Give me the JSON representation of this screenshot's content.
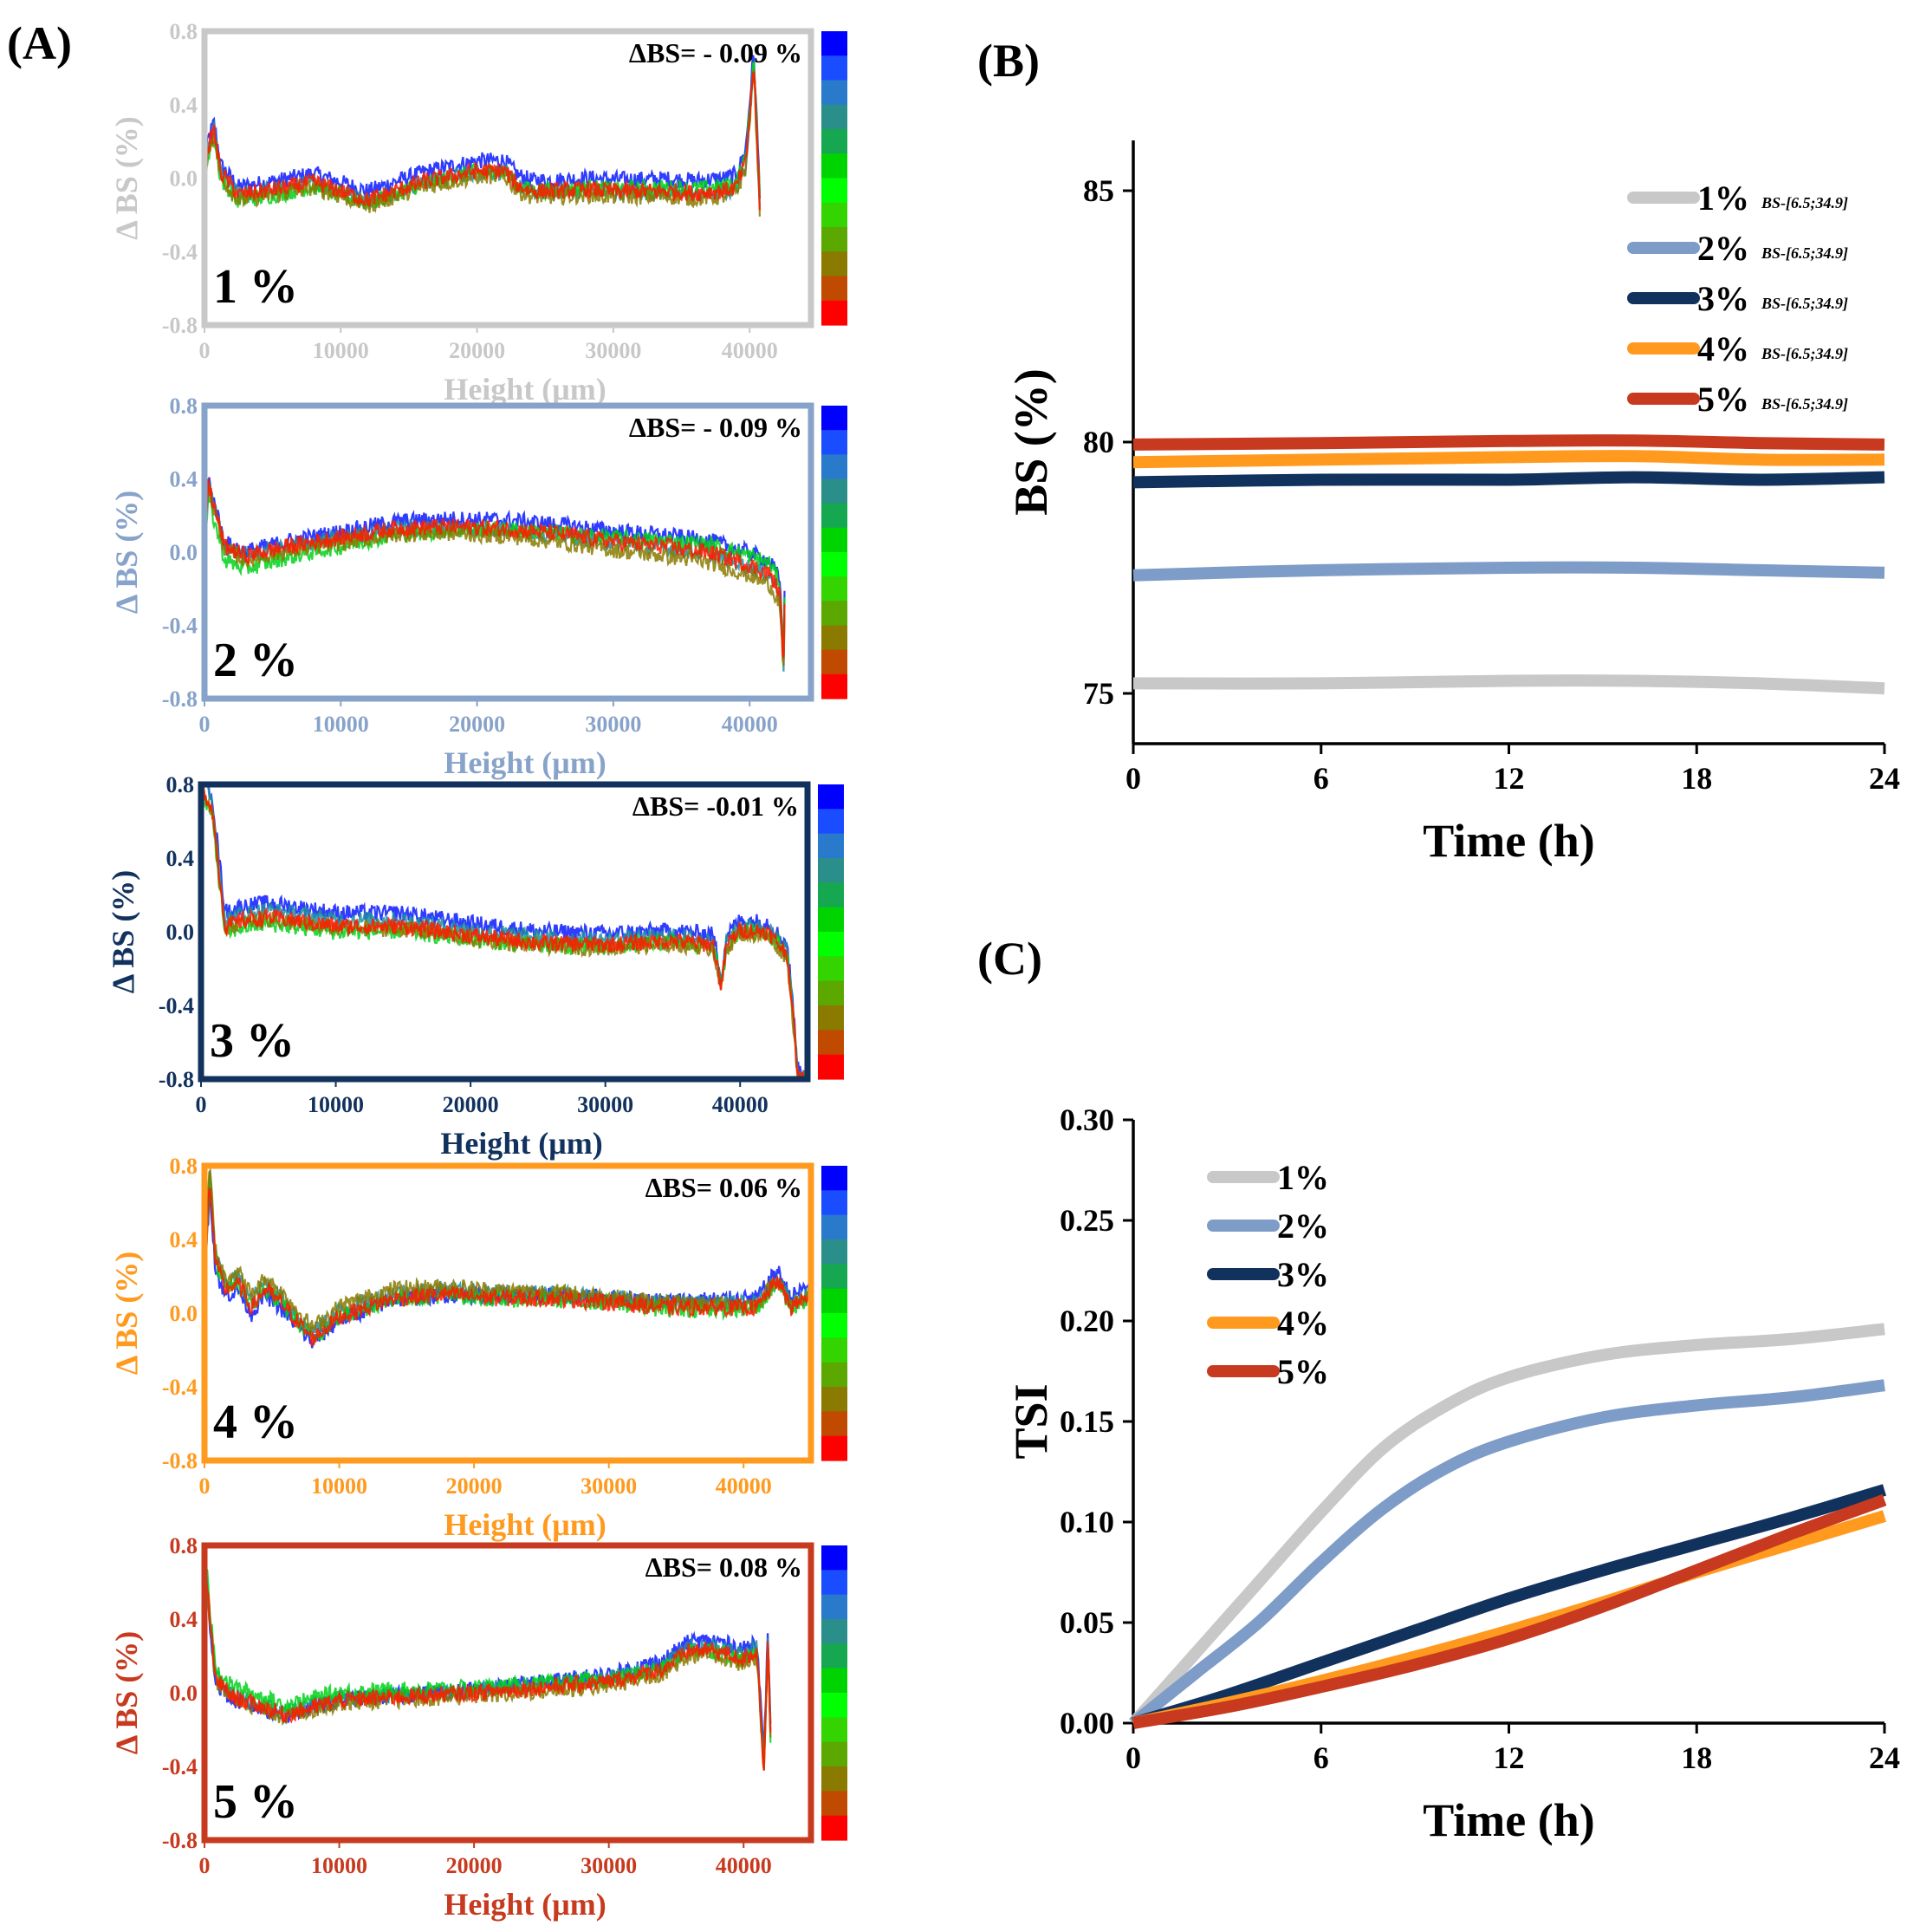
{
  "panel_labels": {
    "a": "(A)",
    "b": "(B)",
    "c": "(C)"
  },
  "colorbar": [
    "#0000ff",
    "#1a4dff",
    "#2a7acc",
    "#2a8f8a",
    "#16a850",
    "#00d400",
    "#00ff00",
    "#33d400",
    "#5aa800",
    "#8a7a00",
    "#c04a00",
    "#ff0000"
  ],
  "chart_data": [
    {
      "type": "line",
      "title": "",
      "id": "a1",
      "concentration": "1 %",
      "delta_label": "ΔBS= - 0.09 %",
      "color": "#c8c8c8",
      "xlabel": "Height (μm)",
      "ylabel": "Δ BS (%)",
      "xlim": [
        0,
        44500
      ],
      "ylim": [
        -0.8,
        0.8
      ],
      "xticks": [
        0,
        10000,
        20000,
        30000,
        40000
      ],
      "yticks": [
        0.8,
        0.4,
        0.0,
        -0.4,
        -0.8
      ],
      "xtick_labels": [
        "0",
        "10000",
        "20000",
        "30000",
        "40000"
      ],
      "ytick_labels": [
        "0.8",
        "0.4",
        "0.0",
        "-0.4",
        "-0.8"
      ],
      "x_end": 40800,
      "profile": [
        [
          0,
          0.05
        ],
        [
          300,
          0.2
        ],
        [
          700,
          0.28
        ],
        [
          1200,
          0.05
        ],
        [
          2500,
          -0.07
        ],
        [
          6000,
          -0.03
        ],
        [
          8000,
          0.0
        ],
        [
          10000,
          -0.05
        ],
        [
          12000,
          -0.1
        ],
        [
          14000,
          -0.05
        ],
        [
          16000,
          0.0
        ],
        [
          18000,
          0.03
        ],
        [
          20000,
          0.06
        ],
        [
          22000,
          0.06
        ],
        [
          23000,
          -0.02
        ],
        [
          24000,
          -0.05
        ],
        [
          26000,
          -0.05
        ],
        [
          28000,
          -0.04
        ],
        [
          30000,
          -0.05
        ],
        [
          32000,
          -0.05
        ],
        [
          34000,
          -0.05
        ],
        [
          36000,
          -0.06
        ],
        [
          38000,
          -0.05
        ],
        [
          39000,
          -0.03
        ],
        [
          39700,
          0.1
        ],
        [
          40100,
          0.45
        ],
        [
          40300,
          0.65
        ],
        [
          40500,
          0.3
        ],
        [
          40700,
          -0.05
        ],
        [
          40800,
          -0.22
        ]
      ],
      "spreads": [
        [
          0.02,
          0.05
        ],
        [
          -0.02,
          -0.03
        ],
        [
          -0.06,
          0.01
        ],
        [
          -0.05,
          -0.05
        ]
      ]
    },
    {
      "type": "line",
      "title": "",
      "id": "a2",
      "concentration": "2 %",
      "delta_label": "ΔBS= - 0.09 %",
      "color": "#88a3c9",
      "xlabel": "Height (μm)",
      "ylabel": "Δ BS (%)",
      "xlim": [
        0,
        44500
      ],
      "ylim": [
        -0.8,
        0.8
      ],
      "xticks": [
        0,
        10000,
        20000,
        30000,
        40000
      ],
      "yticks": [
        0.8,
        0.4,
        0.0,
        -0.4,
        -0.8
      ],
      "xtick_labels": [
        "0",
        "10000",
        "20000",
        "30000",
        "40000"
      ],
      "ytick_labels": [
        "0.8",
        "0.4",
        "0.0",
        "-0.4",
        "-0.8"
      ],
      "x_end": 42600,
      "profile": [
        [
          0,
          0.1
        ],
        [
          300,
          0.4
        ],
        [
          600,
          0.3
        ],
        [
          1500,
          0.05
        ],
        [
          3000,
          0.0
        ],
        [
          6000,
          0.05
        ],
        [
          10000,
          0.1
        ],
        [
          14000,
          0.15
        ],
        [
          18000,
          0.16
        ],
        [
          22000,
          0.15
        ],
        [
          26000,
          0.12
        ],
        [
          30000,
          0.08
        ],
        [
          34000,
          0.05
        ],
        [
          37000,
          0.02
        ],
        [
          40000,
          -0.05
        ],
        [
          41500,
          -0.1
        ],
        [
          42200,
          -0.2
        ],
        [
          42500,
          -0.6
        ],
        [
          42600,
          -0.1
        ]
      ],
      "spreads": [
        [
          0.0,
          0.05
        ],
        [
          -0.02,
          -0.03
        ],
        [
          -0.1,
          0.04
        ],
        [
          -0.04,
          -0.08
        ]
      ]
    },
    {
      "type": "line",
      "title": "",
      "id": "a3",
      "concentration": "3 %",
      "delta_label": "ΔBS= -0.01 %",
      "color": "#12325e",
      "xlabel": "Height (μm)",
      "ylabel": "Δ BS (%)",
      "xlim": [
        0,
        45000
      ],
      "ylim": [
        -0.8,
        0.8
      ],
      "xticks": [
        0,
        10000,
        20000,
        30000,
        40000
      ],
      "yticks": [
        0.8,
        0.4,
        0.0,
        -0.4,
        -0.8
      ],
      "xtick_labels": [
        "0",
        "10000",
        "20000",
        "30000",
        "40000"
      ],
      "ytick_labels": [
        "0.8",
        "0.4",
        "0.0",
        "-0.4",
        "-0.8"
      ],
      "x_end": 44800,
      "profile": [
        [
          0,
          0.8
        ],
        [
          400,
          0.75
        ],
        [
          800,
          0.7
        ],
        [
          1400,
          0.3
        ],
        [
          1800,
          0.05
        ],
        [
          3000,
          0.08
        ],
        [
          5000,
          0.1
        ],
        [
          10000,
          0.05
        ],
        [
          15000,
          0.05
        ],
        [
          20000,
          0.0
        ],
        [
          25000,
          -0.04
        ],
        [
          30000,
          -0.05
        ],
        [
          35000,
          -0.03
        ],
        [
          38000,
          -0.05
        ],
        [
          38600,
          -0.28
        ],
        [
          39000,
          -0.05
        ],
        [
          40000,
          0.03
        ],
        [
          42000,
          0.02
        ],
        [
          43500,
          -0.1
        ],
        [
          44000,
          -0.5
        ],
        [
          44300,
          -0.78
        ]
      ],
      "spreads": [
        [
          0.06,
          0.03
        ],
        [
          0.02,
          0.0
        ],
        [
          -0.06,
          -0.02
        ],
        [
          -0.03,
          -0.04
        ]
      ]
    },
    {
      "type": "line",
      "title": "",
      "id": "a4",
      "concentration": "4 %",
      "delta_label": "ΔBS= 0.06 %",
      "color": "#ff9a1f",
      "xlabel": "Height (μm)",
      "ylabel": "Δ BS (%)",
      "xlim": [
        0,
        45000
      ],
      "ylim": [
        -0.8,
        0.8
      ],
      "xticks": [
        0,
        10000,
        20000,
        30000,
        40000
      ],
      "yticks": [
        0.8,
        0.4,
        0.0,
        -0.4,
        -0.8
      ],
      "xtick_labels": [
        "0",
        "10000",
        "20000",
        "30000",
        "40000"
      ],
      "ytick_labels": [
        "0.8",
        "0.4",
        "0.0",
        "-0.4",
        "-0.8"
      ],
      "x_end": 45000,
      "profile": [
        [
          0,
          0.2
        ],
        [
          400,
          0.75
        ],
        [
          800,
          0.3
        ],
        [
          1500,
          0.15
        ],
        [
          2500,
          0.18
        ],
        [
          3500,
          0.05
        ],
        [
          4500,
          0.15
        ],
        [
          6000,
          0.05
        ],
        [
          8000,
          -0.12
        ],
        [
          10000,
          0.0
        ],
        [
          14000,
          0.1
        ],
        [
          18000,
          0.12
        ],
        [
          22000,
          0.1
        ],
        [
          26000,
          0.1
        ],
        [
          30000,
          0.08
        ],
        [
          34000,
          0.05
        ],
        [
          38000,
          0.05
        ],
        [
          41000,
          0.05
        ],
        [
          42500,
          0.2
        ],
        [
          43500,
          0.05
        ],
        [
          45000,
          0.12
        ]
      ],
      "spreads": [
        [
          -0.06,
          0.04
        ],
        [
          0.02,
          0.0
        ],
        [
          -0.02,
          -0.03
        ],
        [
          0.05,
          -0.01
        ]
      ]
    },
    {
      "type": "line",
      "title": "",
      "id": "a5",
      "concentration": "5 %",
      "delta_label": "ΔBS= 0.08 %",
      "color": "#c73a1f",
      "xlabel": "Height (μm)",
      "ylabel": "Δ BS (%)",
      "xlim": [
        0,
        45000
      ],
      "ylim": [
        -0.8,
        0.8
      ],
      "xticks": [
        0,
        10000,
        20000,
        30000,
        40000
      ],
      "yticks": [
        0.8,
        0.4,
        0.0,
        -0.4,
        -0.8
      ],
      "xtick_labels": [
        "0",
        "10000",
        "20000",
        "30000",
        "40000"
      ],
      "ytick_labels": [
        "0.8",
        "0.4",
        "0.0",
        "-0.4",
        "-0.8"
      ],
      "x_end": 42000,
      "profile": [
        [
          0,
          0.8
        ],
        [
          300,
          0.5
        ],
        [
          800,
          0.1
        ],
        [
          2000,
          0.0
        ],
        [
          6000,
          -0.1
        ],
        [
          10000,
          -0.02
        ],
        [
          15000,
          0.0
        ],
        [
          20000,
          0.02
        ],
        [
          25000,
          0.05
        ],
        [
          30000,
          0.08
        ],
        [
          34000,
          0.15
        ],
        [
          36000,
          0.25
        ],
        [
          38000,
          0.25
        ],
        [
          40000,
          0.2
        ],
        [
          41000,
          0.25
        ],
        [
          41500,
          -0.4
        ],
        [
          41800,
          0.3
        ],
        [
          42000,
          -0.2
        ]
      ],
      "spreads": [
        [
          -0.04,
          0.04
        ],
        [
          -0.01,
          0.0
        ],
        [
          0.04,
          -0.03
        ],
        [
          -0.03,
          -0.05
        ]
      ]
    },
    {
      "type": "line",
      "id": "b",
      "title": "",
      "xlabel": "Time (h)",
      "ylabel": "BS (%)",
      "xlim": [
        0,
        24
      ],
      "ylim": [
        74,
        86
      ],
      "xticks": [
        0,
        6,
        12,
        18,
        24
      ],
      "yticks": [
        75,
        80,
        85
      ],
      "xtick_labels": [
        "0",
        "6",
        "12",
        "18",
        "24"
      ],
      "ytick_labels": [
        "75",
        "80",
        "85"
      ],
      "legend_suffix": "BS-[6.5;34.9]",
      "series": [
        {
          "name": "1%",
          "color": "#c8c8c8",
          "x": [
            0,
            6,
            12,
            16,
            20,
            24
          ],
          "values": [
            75.2,
            75.2,
            75.25,
            75.25,
            75.2,
            75.1
          ]
        },
        {
          "name": "2%",
          "color": "#7e9cc8",
          "x": [
            0,
            6,
            12,
            16,
            20,
            24
          ],
          "values": [
            77.35,
            77.45,
            77.5,
            77.5,
            77.45,
            77.4
          ]
        },
        {
          "name": "3%",
          "color": "#12325e",
          "x": [
            0,
            6,
            12,
            16,
            20,
            24
          ],
          "values": [
            79.2,
            79.25,
            79.25,
            79.3,
            79.25,
            79.3
          ]
        },
        {
          "name": "4%",
          "color": "#ff9a1f",
          "x": [
            0,
            6,
            12,
            16,
            20,
            24
          ],
          "values": [
            79.6,
            79.65,
            79.7,
            79.72,
            79.65,
            79.65
          ]
        },
        {
          "name": "5%",
          "color": "#c73a1f",
          "x": [
            0,
            6,
            12,
            16,
            20,
            24
          ],
          "values": [
            79.95,
            79.98,
            80.02,
            80.03,
            79.98,
            79.95
          ]
        }
      ]
    },
    {
      "type": "line",
      "id": "c",
      "title": "",
      "xlabel": "Time (h)",
      "ylabel": "TSI",
      "xlim": [
        0,
        24
      ],
      "ylim": [
        0,
        0.3
      ],
      "xticks": [
        0,
        6,
        12,
        18,
        24
      ],
      "yticks": [
        0.0,
        0.05,
        0.1,
        0.15,
        0.2,
        0.25,
        0.3
      ],
      "xtick_labels": [
        "0",
        "6",
        "12",
        "18",
        "24"
      ],
      "ytick_labels": [
        "0.00",
        "0.05",
        "0.10",
        "0.15",
        "0.20",
        "0.25",
        "0.30"
      ],
      "series": [
        {
          "name": "1%",
          "color": "#c8c8c8",
          "x": [
            0,
            2,
            4,
            6,
            8,
            10,
            12,
            15,
            18,
            21,
            24
          ],
          "values": [
            0.0,
            0.035,
            0.07,
            0.105,
            0.137,
            0.158,
            0.172,
            0.183,
            0.188,
            0.191,
            0.196
          ]
        },
        {
          "name": "2%",
          "color": "#7e9cc8",
          "x": [
            0,
            2,
            4,
            6,
            8,
            10,
            12,
            15,
            18,
            21,
            24
          ],
          "values": [
            0.0,
            0.025,
            0.05,
            0.08,
            0.107,
            0.127,
            0.14,
            0.152,
            0.158,
            0.162,
            0.168
          ]
        },
        {
          "name": "3%",
          "color": "#12325e",
          "x": [
            0,
            3,
            6,
            9,
            12,
            15,
            18,
            21,
            24
          ],
          "values": [
            0.0,
            0.014,
            0.03,
            0.046,
            0.062,
            0.076,
            0.089,
            0.102,
            0.116
          ]
        },
        {
          "name": "4%",
          "color": "#ff9a1f",
          "x": [
            0,
            3,
            6,
            9,
            12,
            15,
            18,
            21,
            24
          ],
          "values": [
            0.0,
            0.01,
            0.021,
            0.033,
            0.046,
            0.06,
            0.075,
            0.089,
            0.103
          ]
        },
        {
          "name": "5%",
          "color": "#c73a1f",
          "x": [
            0,
            3,
            6,
            9,
            12,
            15,
            18,
            21,
            24
          ],
          "values": [
            0.0,
            0.008,
            0.018,
            0.029,
            0.042,
            0.058,
            0.076,
            0.094,
            0.111
          ]
        }
      ]
    }
  ]
}
